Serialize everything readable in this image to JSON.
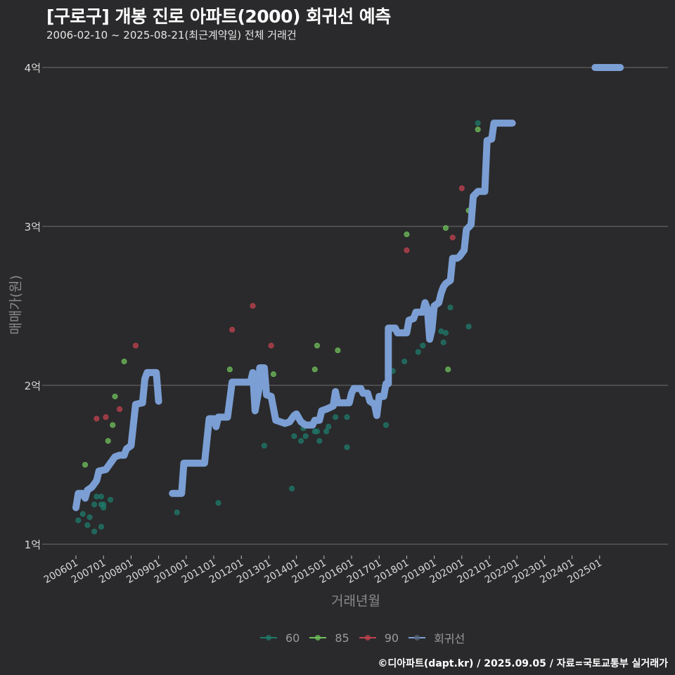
{
  "header": {
    "title": "[구로구] 개봉 진로 아파트(2000) 회귀선 예측",
    "subtitle": "2006-02-10 ~ 2025-08-21(최근계약일) 전체 거래건"
  },
  "caption": "©디아파트(dapt.kr) / 2025.09.05 / 자료=국토교통부 실거래가",
  "colors": {
    "background": "#2a2a2c",
    "grid": "#6e6e6e",
    "s60": "#1f7a6a",
    "s85": "#6fbf5a",
    "s90": "#c0424e",
    "regression": "#7b9fd4"
  },
  "chart_data": {
    "type": "line+scatter",
    "title": "[구로구] 개봉 진로 아파트(2000) 회귀선 예측",
    "subtitle": "2006-02-10 ~ 2025-08-21(최근계약일) 전체 거래건",
    "xlabel": "거래년월",
    "ylabel": "매매가(원)",
    "x_ticks": [
      "200601",
      "200701",
      "200801",
      "200901",
      "201001",
      "201101",
      "201201",
      "201301",
      "201401",
      "201501",
      "201601",
      "201701",
      "201801",
      "201901",
      "202001",
      "202101",
      "202201",
      "202301",
      "202401",
      "202501"
    ],
    "y_ticks": [
      {
        "value": 1,
        "label": "1억"
      },
      {
        "value": 2,
        "label": "2억"
      },
      {
        "value": 3,
        "label": "3억"
      },
      {
        "value": 4,
        "label": "4억"
      }
    ],
    "ylim": [
      0.95,
      4.2
    ],
    "grid": "horizontal",
    "legend": [
      {
        "name": "60",
        "color": "#1f7a6a"
      },
      {
        "name": "85",
        "color": "#6fbf5a"
      },
      {
        "name": "90",
        "color": "#c0424e"
      },
      {
        "name": "회귀선",
        "color": "#7b9fd4"
      }
    ],
    "legend_position": "bottom",
    "x_unit": "months since 2006-01",
    "y_unit": "억 원",
    "series": [
      {
        "name": "60",
        "type": "scatter",
        "points": [
          [
            1,
            1.15
          ],
          [
            3,
            1.19
          ],
          [
            5,
            1.12
          ],
          [
            6,
            1.17
          ],
          [
            8,
            1.08
          ],
          [
            8,
            1.25
          ],
          [
            9,
            1.3
          ],
          [
            11,
            1.11
          ],
          [
            11,
            1.3
          ],
          [
            11,
            1.25
          ],
          [
            12,
            1.25
          ],
          [
            12,
            1.23
          ],
          [
            15,
            1.28
          ],
          [
            44,
            1.2
          ],
          [
            62,
            1.26
          ],
          [
            82,
            1.62
          ],
          [
            94,
            1.35
          ],
          [
            95,
            1.68
          ],
          [
            98,
            1.65
          ],
          [
            99,
            1.73
          ],
          [
            100,
            1.68
          ],
          [
            104,
            1.71
          ],
          [
            105,
            1.71
          ],
          [
            106,
            1.65
          ],
          [
            109,
            1.71
          ],
          [
            110,
            1.74
          ],
          [
            113,
            1.8
          ],
          [
            118,
            1.61
          ],
          [
            118,
            1.8
          ],
          [
            135,
            1.75
          ],
          [
            138,
            2.09
          ],
          [
            143,
            2.15
          ],
          [
            149,
            2.21
          ],
          [
            151,
            2.25
          ],
          [
            159,
            2.34
          ],
          [
            160,
            2.27
          ],
          [
            161,
            2.33
          ],
          [
            163,
            2.49
          ],
          [
            171,
            2.37
          ],
          [
            175,
            3.65
          ]
        ]
      },
      {
        "name": "85",
        "type": "scatter",
        "points": [
          [
            4,
            1.5
          ],
          [
            14,
            1.65
          ],
          [
            16,
            1.75
          ],
          [
            17,
            1.93
          ],
          [
            21,
            2.15
          ],
          [
            67,
            2.1
          ],
          [
            86,
            2.07
          ],
          [
            104,
            2.1
          ],
          [
            105,
            2.25
          ],
          [
            114,
            2.22
          ],
          [
            144,
            2.95
          ],
          [
            161,
            2.99
          ],
          [
            162,
            2.1
          ],
          [
            171,
            3.1
          ],
          [
            175,
            3.61
          ]
        ]
      },
      {
        "name": "90",
        "type": "scatter",
        "points": [
          [
            9,
            1.79
          ],
          [
            13,
            1.8
          ],
          [
            19,
            1.85
          ],
          [
            26,
            2.25
          ],
          [
            68,
            2.35
          ],
          [
            77,
            2.5
          ],
          [
            85,
            2.25
          ],
          [
            144,
            2.85
          ],
          [
            164,
            2.93
          ],
          [
            168,
            3.24
          ]
        ]
      },
      {
        "name": "회귀선",
        "type": "line",
        "segments": [
          [
            [
              0,
              1.23
            ],
            [
              1,
              1.32
            ],
            [
              3,
              1.32
            ],
            [
              4,
              1.29
            ],
            [
              5,
              1.34
            ],
            [
              7,
              1.36
            ],
            [
              9,
              1.4
            ],
            [
              10,
              1.46
            ],
            [
              13,
              1.47
            ],
            [
              15,
              1.51
            ],
            [
              17,
              1.55
            ],
            [
              19,
              1.56
            ],
            [
              21,
              1.56
            ],
            [
              22,
              1.6
            ],
            [
              24,
              1.62
            ],
            [
              26,
              1.88
            ],
            [
              29,
              1.89
            ],
            [
              30,
              2.04
            ],
            [
              31,
              2.08
            ],
            [
              35,
              2.08
            ],
            [
              36,
              1.9
            ]
          ],
          [
            [
              42,
              1.32
            ],
            [
              46,
              1.32
            ],
            [
              47,
              1.51
            ],
            [
              56,
              1.51
            ],
            [
              58,
              1.79
            ],
            [
              60,
              1.79
            ],
            [
              61,
              1.74
            ],
            [
              62,
              1.8
            ],
            [
              66,
              1.8
            ],
            [
              68,
              2.02
            ],
            [
              76,
              2.02
            ],
            [
              77,
              2.08
            ],
            [
              78,
              1.84
            ],
            [
              80,
              2.0
            ],
            [
              80,
              2.11
            ],
            [
              82,
              2.11
            ],
            [
              83,
              1.94
            ],
            [
              85,
              1.93
            ],
            [
              87,
              1.78
            ],
            [
              91,
              1.76
            ],
            [
              93,
              1.77
            ],
            [
              95,
              1.81
            ],
            [
              96,
              1.82
            ],
            [
              98,
              1.77
            ],
            [
              100,
              1.75
            ],
            [
              103,
              1.75
            ],
            [
              104,
              1.78
            ],
            [
              106,
              1.78
            ],
            [
              107,
              1.84
            ],
            [
              109,
              1.85
            ],
            [
              112,
              1.87
            ],
            [
              113,
              1.96
            ],
            [
              114,
              1.89
            ],
            [
              119,
              1.89
            ],
            [
              120,
              1.95
            ],
            [
              121,
              1.98
            ],
            [
              124,
              1.98
            ],
            [
              125,
              1.95
            ],
            [
              127,
              1.95
            ],
            [
              128,
              1.9
            ],
            [
              130,
              1.88
            ],
            [
              131,
              1.81
            ],
            [
              132,
              1.93
            ],
            [
              134,
              1.93
            ],
            [
              135,
              2.01
            ],
            [
              136,
              2.01
            ],
            [
              136,
              2.36
            ],
            [
              139,
              2.36
            ],
            [
              140,
              2.33
            ],
            [
              144,
              2.33
            ],
            [
              145,
              2.41
            ],
            [
              147,
              2.42
            ],
            [
              148,
              2.46
            ],
            [
              151,
              2.46
            ],
            [
              152,
              2.52
            ],
            [
              153,
              2.48
            ],
            [
              154,
              2.29
            ],
            [
              155,
              2.35
            ],
            [
              156,
              2.5
            ],
            [
              158,
              2.52
            ],
            [
              159,
              2.58
            ],
            [
              160,
              2.62
            ],
            [
              161,
              2.64
            ],
            [
              163,
              2.66
            ],
            [
              164,
              2.8
            ],
            [
              166,
              2.8
            ],
            [
              167,
              2.81
            ],
            [
              169,
              2.85
            ],
            [
              170,
              2.98
            ],
            [
              172,
              3.01
            ],
            [
              173,
              3.19
            ],
            [
              175,
              3.22
            ],
            [
              178,
              3.22
            ],
            [
              179,
              3.54
            ],
            [
              181,
              3.55
            ],
            [
              182,
              3.65
            ],
            [
              190,
              3.65
            ]
          ],
          [
            [
              226,
              4.0
            ],
            [
              237,
              4.0
            ]
          ]
        ]
      }
    ]
  },
  "axes": {
    "x_title": "거래년월",
    "y_title": "매매가(원)"
  }
}
